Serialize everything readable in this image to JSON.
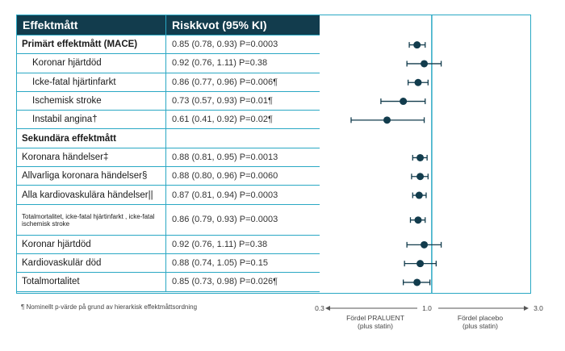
{
  "header": {
    "col1": "Effektmått",
    "col2": "Riskkvot (95% KI)"
  },
  "rows": [
    {
      "label": "Primärt effektmått (MACE)",
      "style": "sec",
      "value": "0.85 (0.78, 0.93) P=0.0003"
    },
    {
      "label": "Koronar hjärtdöd",
      "style": "ind",
      "value": "0.92 (0.76, 1.11) P=0.38"
    },
    {
      "label": "Icke-fatal hjärtinfarkt",
      "style": "ind",
      "value": "0.86 (0.77, 0.96) P=0.006¶"
    },
    {
      "label": "Ischemisk stroke",
      "style": "ind",
      "value": "0.73 (0.57, 0.93) P=0.01¶"
    },
    {
      "label": "Instabil angina†",
      "style": "ind",
      "value": "0.61 (0.41, 0.92) P=0.02¶"
    },
    {
      "label": "Sekundära effektmått",
      "style": "sec",
      "value": ""
    },
    {
      "label": "Koronara händelser‡",
      "style": "plain",
      "value": "0.88 (0.81, 0.95) P=0.0013"
    },
    {
      "label": "Allvarliga koronara händelser§",
      "style": "plain",
      "value": "0.88 (0.80, 0.96) P=0.0060"
    },
    {
      "label": "Alla kardiovaskulära händelser||",
      "style": "plain",
      "value": "0.87 (0.81, 0.94) P=0.0003"
    },
    {
      "label": "Totalmortalitet, icke-fatal hjärtinfarkt , icke-fatal ischemisk stroke",
      "style": "small",
      "value": "0.86 (0.79, 0.93) P=0.0003"
    },
    {
      "label": "Koronar hjärtdöd",
      "style": "plain",
      "value": "0.92 (0.76, 1.11) P=0.38"
    },
    {
      "label": "Kardiovaskulär död",
      "style": "plain",
      "value": "0.88 (0.74, 1.05) P=0.15"
    },
    {
      "label": "Totalmortalitet",
      "style": "plain",
      "value": "0.85 (0.73, 0.98) P=0.026¶"
    }
  ],
  "footnote": "¶ Nominellt p-värde på grund av hierarkisk effektmåttsordning",
  "axis": {
    "tick_min": "0.3",
    "tick_mid": "1.0",
    "tick_max": "3.0",
    "left_label_1": "Fördel PRALUENT",
    "left_label_2": "(plus statin)",
    "right_label_1": "Fördel placebo",
    "right_label_2": "(plus statin)"
  },
  "colors": {
    "header_bg": "#123c4d",
    "border": "#2aa8c4",
    "marker": "#123c4d",
    "ref_line": "#2aa8c4"
  },
  "chart_data": {
    "type": "forest",
    "scale": "log",
    "xlim": [
      0.3,
      3.0
    ],
    "reference": 1.0,
    "points": [
      {
        "hr": 0.85,
        "lo": 0.78,
        "hi": 0.93
      },
      {
        "hr": 0.92,
        "lo": 0.76,
        "hi": 1.11
      },
      {
        "hr": 0.86,
        "lo": 0.77,
        "hi": 0.96
      },
      {
        "hr": 0.73,
        "lo": 0.57,
        "hi": 0.93
      },
      {
        "hr": 0.61,
        "lo": 0.41,
        "hi": 0.92
      },
      null,
      {
        "hr": 0.88,
        "lo": 0.81,
        "hi": 0.95
      },
      {
        "hr": 0.88,
        "lo": 0.8,
        "hi": 0.96
      },
      {
        "hr": 0.87,
        "lo": 0.81,
        "hi": 0.94
      },
      {
        "hr": 0.86,
        "lo": 0.79,
        "hi": 0.93
      },
      {
        "hr": 0.92,
        "lo": 0.76,
        "hi": 1.11
      },
      {
        "hr": 0.88,
        "lo": 0.74,
        "hi": 1.05
      },
      {
        "hr": 0.85,
        "lo": 0.73,
        "hi": 0.98
      }
    ]
  }
}
